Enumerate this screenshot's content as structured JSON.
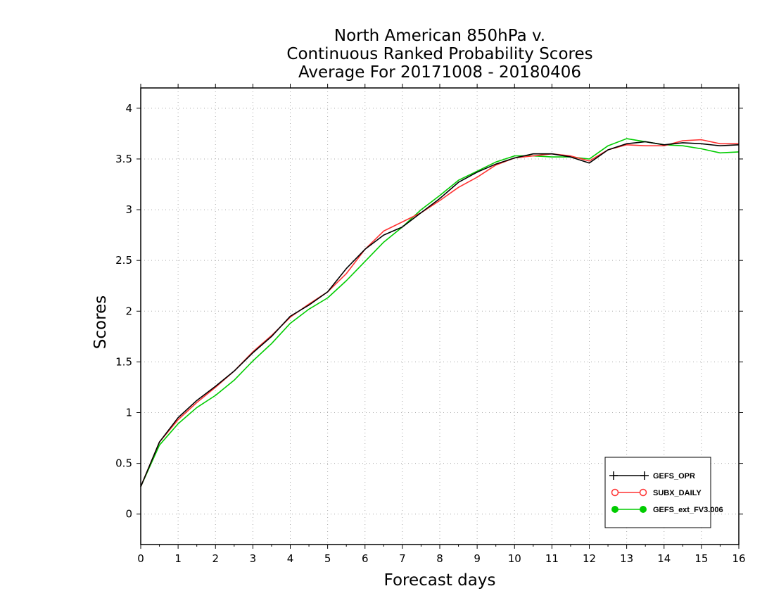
{
  "chart_data": {
    "type": "line",
    "title_lines": [
      "North American 850hPa v.",
      "Continuous Ranked Probability Scores",
      "Average For 20171008 - 20180406"
    ],
    "xlabel": "Forecast days",
    "ylabel": "Scores",
    "xlim": [
      0,
      16
    ],
    "ylim": [
      -0.3,
      4.2
    ],
    "x_ticks": [
      "0",
      "1",
      "2",
      "3",
      "4",
      "5",
      "6",
      "7",
      "8",
      "9",
      "10",
      "11",
      "12",
      "13",
      "14",
      "15",
      "16"
    ],
    "y_ticks": [
      "0",
      "0.5",
      "1",
      "1.5",
      "2",
      "2.5",
      "3",
      "3.5",
      "4"
    ],
    "grid": true,
    "legend_position": "bottom-right",
    "x": [
      0,
      0.5,
      1,
      1.5,
      2,
      2.5,
      3,
      3.5,
      4,
      4.5,
      5,
      5.5,
      6,
      6.5,
      7,
      7.5,
      8,
      8.5,
      9,
      9.5,
      10,
      10.5,
      11,
      11.5,
      12,
      12.5,
      13,
      13.5,
      14,
      14.5,
      15,
      15.5,
      16
    ],
    "series": [
      {
        "name": "GEFS_OPR",
        "color": "#000000",
        "marker": "plus",
        "values": [
          0.27,
          0.71,
          0.95,
          1.12,
          1.26,
          1.41,
          1.59,
          1.75,
          1.95,
          2.06,
          2.19,
          2.42,
          2.61,
          2.75,
          2.83,
          2.97,
          3.11,
          3.27,
          3.37,
          3.45,
          3.51,
          3.55,
          3.55,
          3.52,
          3.46,
          3.59,
          3.65,
          3.67,
          3.64,
          3.66,
          3.65,
          3.63,
          3.64
        ]
      },
      {
        "name": "SUBX_DAILY",
        "color": "#ff3333",
        "marker": "open-circle",
        "values": [
          0.27,
          0.71,
          0.93,
          1.1,
          1.25,
          1.41,
          1.6,
          1.76,
          1.94,
          2.07,
          2.19,
          2.37,
          2.61,
          2.79,
          2.88,
          2.97,
          3.09,
          3.22,
          3.32,
          3.44,
          3.51,
          3.53,
          3.55,
          3.53,
          3.48,
          3.59,
          3.64,
          3.63,
          3.63,
          3.68,
          3.69,
          3.65,
          3.65
        ]
      },
      {
        "name": "GEFS_ext_FV3.006",
        "color": "#00cc00",
        "marker": "filled-circle",
        "values": [
          0.27,
          0.68,
          0.89,
          1.05,
          1.17,
          1.32,
          1.51,
          1.68,
          1.88,
          2.02,
          2.13,
          2.3,
          2.49,
          2.68,
          2.83,
          3.0,
          3.14,
          3.29,
          3.38,
          3.47,
          3.53,
          3.53,
          3.52,
          3.52,
          3.5,
          3.63,
          3.7,
          3.67,
          3.64,
          3.63,
          3.6,
          3.56,
          3.57
        ]
      }
    ]
  }
}
